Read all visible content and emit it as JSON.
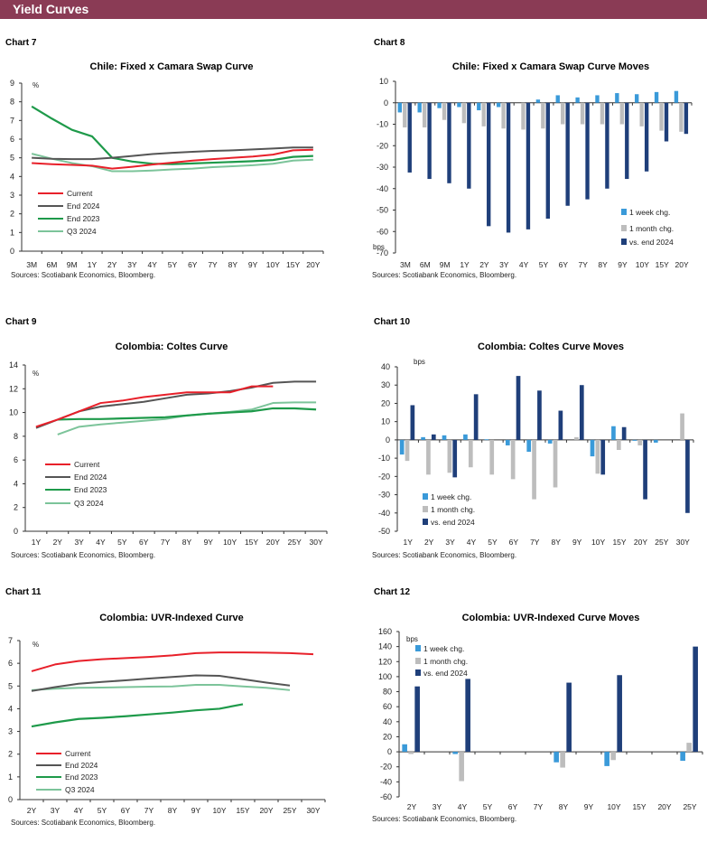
{
  "header": {
    "title": "Yield Curves"
  },
  "colors": {
    "header": "#8a3b55",
    "current": "#e8202a",
    "end2024_line": "#555555",
    "end2023": "#1e9a4a",
    "q3_2024": "#7cc49a",
    "week": "#3a9ad9",
    "month": "#bdbdbd",
    "vs_end": "#1f3f7a"
  },
  "chart_data": [
    {
      "label": "Chart 7",
      "type": "line",
      "title": "Chile: Fixed x Camara Swap Curve",
      "unit": "%",
      "ylim": [
        0,
        9
      ],
      "ystep": 1,
      "grid": false,
      "legend": "bottom-left",
      "categories": [
        "3M",
        "6M",
        "9M",
        "1Y",
        "2Y",
        "3Y",
        "4Y",
        "5Y",
        "6Y",
        "7Y",
        "8Y",
        "9Y",
        "10Y",
        "15Y",
        "20Y"
      ],
      "series": [
        {
          "name": "Current",
          "values": [
            4.72,
            4.66,
            4.62,
            4.58,
            4.42,
            4.52,
            4.64,
            4.74,
            4.85,
            4.93,
            5.0,
            5.07,
            5.17,
            5.4,
            5.43
          ]
        },
        {
          "name": "End 2024",
          "values": [
            5.0,
            4.95,
            4.93,
            4.93,
            5.0,
            5.1,
            5.2,
            5.27,
            5.32,
            5.37,
            5.4,
            5.45,
            5.5,
            5.55,
            5.55
          ]
        },
        {
          "name": "End 2023",
          "values": [
            7.75,
            7.1,
            6.5,
            6.15,
            5.0,
            4.8,
            4.68,
            4.66,
            4.7,
            4.74,
            4.78,
            4.82,
            4.88,
            5.05,
            5.1
          ]
        },
        {
          "name": "Q3 2024",
          "values": [
            5.22,
            4.95,
            4.72,
            4.55,
            4.28,
            4.28,
            4.32,
            4.38,
            4.42,
            4.5,
            4.55,
            4.6,
            4.68,
            4.85,
            4.9
          ]
        }
      ],
      "source": "Sources: Scotiabank Economics, Bloomberg."
    },
    {
      "label": "Chart 8",
      "type": "bar",
      "title": "Chile: Fixed x Camara Swap Curve Moves",
      "unit": "bps",
      "ylim": [
        -70,
        10
      ],
      "ystep": 10,
      "grid": false,
      "legend": "bottom-right",
      "categories": [
        "3M",
        "6M",
        "9M",
        "1Y",
        "2Y",
        "3Y",
        "4Y",
        "5Y",
        "6Y",
        "7Y",
        "8Y",
        "9Y",
        "10Y",
        "15Y",
        "20Y"
      ],
      "series": [
        {
          "name": "1 week chg.",
          "values": [
            -4.5,
            -4.5,
            -2.5,
            -2,
            -3.5,
            -2,
            0,
            1.5,
            3.5,
            2.5,
            3.5,
            4.5,
            4,
            5,
            5.5
          ]
        },
        {
          "name": "1 month chg.",
          "values": [
            -11.5,
            -11.5,
            -8,
            -9.5,
            -11,
            -12,
            -12.5,
            -12,
            -10,
            -10,
            -10,
            -10,
            -11,
            -13,
            -13.5
          ]
        },
        {
          "name": "vs. end 2024",
          "values": [
            -32.5,
            -35.5,
            -37.5,
            -40,
            -57.5,
            -60.5,
            -59,
            -54,
            -48,
            -45,
            -40,
            -35.5,
            -32,
            -18,
            -14.5
          ]
        }
      ],
      "source": "Sources: Scotiabank Economics, Bloomberg."
    },
    {
      "label": "Chart 9",
      "type": "line",
      "title": "Colombia: Coltes Curve",
      "unit": "%",
      "ylim": [
        0,
        14
      ],
      "ystep": 2,
      "grid": false,
      "legend": "bottom-left",
      "categories": [
        "1Y",
        "2Y",
        "3Y",
        "4Y",
        "5Y",
        "6Y",
        "7Y",
        "8Y",
        "9Y",
        "10Y",
        "15Y",
        "20Y",
        "25Y",
        "30Y"
      ],
      "series": [
        {
          "name": "Current",
          "values": [
            8.8,
            9.4,
            10.1,
            10.8,
            11.0,
            11.3,
            11.5,
            11.7,
            11.7,
            11.7,
            12.2,
            12.2,
            null,
            null
          ]
        },
        {
          "name": "End 2024",
          "values": [
            8.7,
            9.4,
            10.1,
            10.5,
            10.7,
            10.9,
            11.2,
            11.5,
            11.6,
            11.8,
            12.1,
            12.5,
            12.6,
            12.6
          ]
        },
        {
          "name": "End 2023",
          "values": [
            null,
            9.4,
            9.45,
            9.45,
            9.5,
            9.55,
            9.6,
            9.75,
            9.9,
            10.0,
            10.1,
            10.35,
            10.35,
            10.25
          ]
        },
        {
          "name": "Q3 2024",
          "values": [
            null,
            8.15,
            8.8,
            9.0,
            9.15,
            9.3,
            9.45,
            9.75,
            9.9,
            10.05,
            10.25,
            10.8,
            10.85,
            10.85
          ]
        }
      ],
      "source": "Sources: Scotiabank Economics, Bloomberg."
    },
    {
      "label": "Chart 10",
      "type": "bar",
      "title": "Colombia: Coltes Curve Moves",
      "unit": "bps",
      "ylim": [
        -50,
        40
      ],
      "ystep": 10,
      "grid": false,
      "legend": "bottom-left",
      "categories": [
        "1Y",
        "2Y",
        "3Y",
        "4Y",
        "5Y",
        "6Y",
        "7Y",
        "8Y",
        "9Y",
        "10Y",
        "15Y",
        "20Y",
        "25Y",
        "30Y"
      ],
      "series": [
        {
          "name": "1 week chg.",
          "values": [
            -8,
            1.5,
            2.5,
            3,
            0.3,
            -3,
            -6.5,
            -2,
            0,
            -9,
            7.5,
            -0.5,
            -1.5,
            0
          ]
        },
        {
          "name": "1 month chg.",
          "values": [
            -11.5,
            -19,
            -18,
            -15,
            -19,
            -21.5,
            -32.5,
            -26,
            1.5,
            -18.5,
            -5.5,
            -3,
            0,
            14.5
          ]
        },
        {
          "name": "vs. end 2024",
          "values": [
            19,
            3,
            -20.5,
            25,
            0,
            35,
            27,
            16,
            30,
            -19,
            7,
            -32.5,
            0,
            -40
          ]
        }
      ],
      "source": "Sources: Scotiabank Economics, Bloomberg."
    },
    {
      "label": "Chart 11",
      "type": "line",
      "title": "Colombia: UVR-Indexed Curve",
      "unit": "%",
      "ylim": [
        0,
        7
      ],
      "ystep": 1,
      "grid": false,
      "legend": "bottom-left",
      "categories": [
        "2Y",
        "3Y",
        "4Y",
        "5Y",
        "6Y",
        "7Y",
        "8Y",
        "9Y",
        "10Y",
        "15Y",
        "20Y",
        "25Y",
        "30Y"
      ],
      "series": [
        {
          "name": "Current",
          "values": [
            5.65,
            5.95,
            6.1,
            6.18,
            6.23,
            6.28,
            6.35,
            6.45,
            6.48,
            6.48,
            6.47,
            6.45,
            6.4
          ]
        },
        {
          "name": "End 2024",
          "values": [
            4.78,
            4.95,
            5.1,
            5.18,
            5.25,
            5.33,
            5.4,
            5.47,
            5.45,
            5.3,
            5.15,
            5.02,
            null
          ]
        },
        {
          "name": "End 2023",
          "values": [
            3.22,
            3.4,
            3.55,
            3.6,
            3.67,
            3.75,
            3.83,
            3.93,
            4.0,
            4.2,
            null,
            null,
            null
          ]
        },
        {
          "name": "Q3 2024",
          "values": [
            4.82,
            4.88,
            4.92,
            4.93,
            4.95,
            4.97,
            4.98,
            5.05,
            5.05,
            4.98,
            4.92,
            4.82,
            null
          ]
        }
      ],
      "source": "Sources: Scotiabank Economics, Bloomberg."
    },
    {
      "label": "Chart 12",
      "type": "bar",
      "title": "Colombia: UVR-Indexed Curve Moves",
      "unit": "bps",
      "ylim": [
        -60,
        160
      ],
      "ystep": 20,
      "grid": false,
      "legend": "top-left",
      "categories": [
        "2Y",
        "3Y",
        "4Y",
        "5Y",
        "6Y",
        "7Y",
        "8Y",
        "9Y",
        "10Y",
        "15Y",
        "20Y",
        "25Y"
      ],
      "series": [
        {
          "name": "1 week chg.",
          "values": [
            10,
            0,
            -3,
            0,
            0,
            0,
            -14,
            0,
            -19,
            0,
            0,
            -12
          ]
        },
        {
          "name": "1 month chg.",
          "values": [
            -3,
            0,
            -39,
            0,
            0,
            0,
            -21,
            0,
            -11,
            0,
            0,
            12
          ]
        },
        {
          "name": "vs. end 2024",
          "values": [
            87,
            0,
            97,
            0,
            0,
            0,
            92,
            0,
            102,
            0,
            0,
            140
          ]
        }
      ],
      "source": "Sources: Scotiabank Economics, Bloomberg."
    }
  ]
}
